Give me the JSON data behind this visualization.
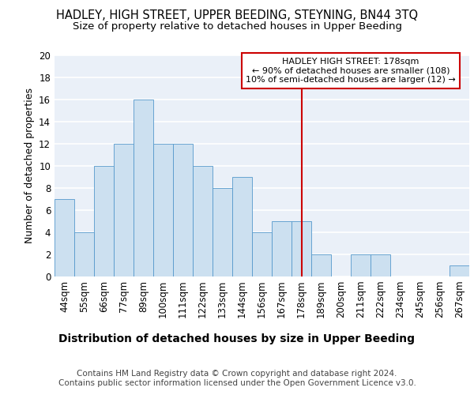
{
  "title": "HADLEY, HIGH STREET, UPPER BEEDING, STEYNING, BN44 3TQ",
  "subtitle": "Size of property relative to detached houses in Upper Beeding",
  "xlabel": "Distribution of detached houses by size in Upper Beeding",
  "ylabel": "Number of detached properties",
  "categories": [
    "44sqm",
    "55sqm",
    "66sqm",
    "77sqm",
    "89sqm",
    "100sqm",
    "111sqm",
    "122sqm",
    "133sqm",
    "144sqm",
    "156sqm",
    "167sqm",
    "178sqm",
    "189sqm",
    "200sqm",
    "211sqm",
    "222sqm",
    "234sqm",
    "245sqm",
    "256sqm",
    "267sqm"
  ],
  "values": [
    7,
    4,
    10,
    12,
    16,
    12,
    12,
    10,
    8,
    9,
    4,
    5,
    5,
    2,
    0,
    2,
    2,
    0,
    0,
    0,
    1
  ],
  "bar_color": "#cce0f0",
  "bar_edge_color": "#5599cc",
  "reference_line_x": 12,
  "reference_line_color": "#cc0000",
  "annotation_title": "HADLEY HIGH STREET: 178sqm",
  "annotation_line1": "← 90% of detached houses are smaller (108)",
  "annotation_line2": "10% of semi-detached houses are larger (12) →",
  "annotation_box_color": "#ffffff",
  "annotation_box_edge_color": "#cc0000",
  "footer": "Contains HM Land Registry data © Crown copyright and database right 2024.\nContains public sector information licensed under the Open Government Licence v3.0.",
  "ylim": [
    0,
    20
  ],
  "yticks": [
    0,
    2,
    4,
    6,
    8,
    10,
    12,
    14,
    16,
    18,
    20
  ],
  "bg_color": "#eaf0f8",
  "grid_color": "#ffffff",
  "title_fontsize": 10.5,
  "subtitle_fontsize": 9.5,
  "xlabel_fontsize": 10,
  "ylabel_fontsize": 9,
  "tick_fontsize": 8.5,
  "footer_fontsize": 7.5,
  "ann_fontsize": 8
}
